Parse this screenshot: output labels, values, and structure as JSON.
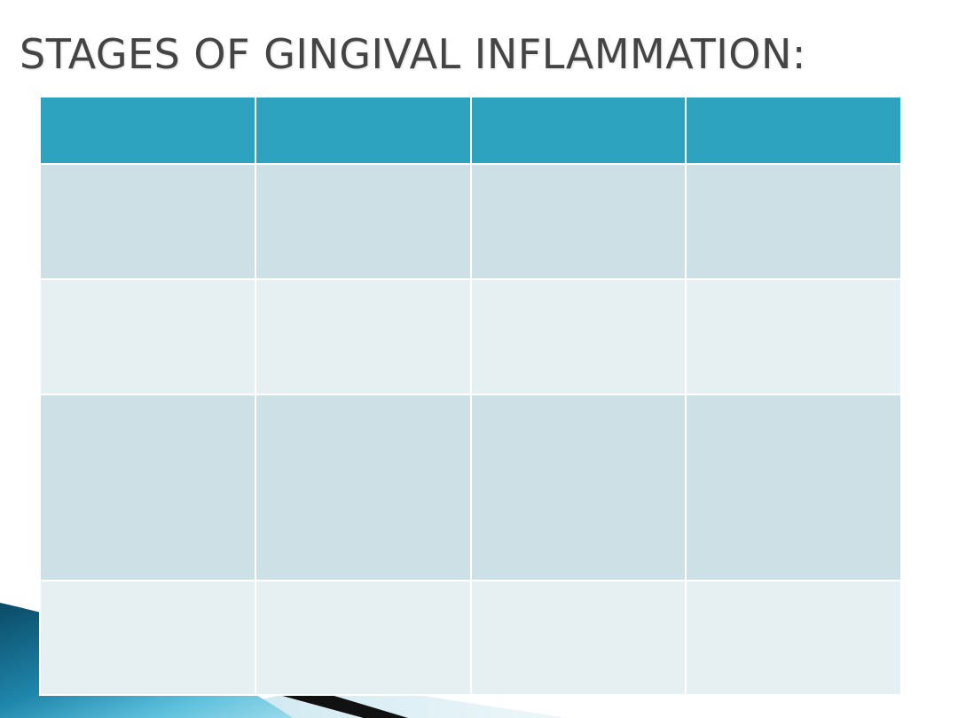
{
  "slide": {
    "title": "STAGES OF GINGIVAL INFLAMMATION:"
  },
  "table": {
    "header": [
      "",
      "",
      "",
      ""
    ],
    "rows": [
      [
        "",
        "",
        "",
        ""
      ],
      [
        "",
        "",
        "",
        ""
      ],
      [
        "",
        "",
        "",
        ""
      ],
      [
        "",
        "",
        "",
        ""
      ]
    ]
  },
  "colors": {
    "header_fill": "#2ea3bf",
    "row_band_dark": "#cde0e6",
    "row_band_light": "#e6eff2",
    "title_text": "#444444",
    "accent_blue": "#0e5f7a",
    "accent_dark": "#111111"
  }
}
